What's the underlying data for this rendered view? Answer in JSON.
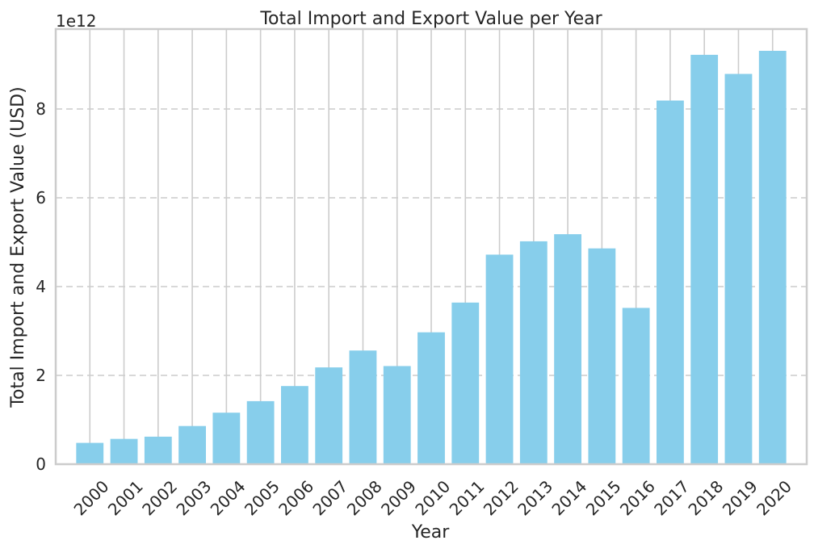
{
  "chart_data": {
    "type": "bar",
    "title": "Total Import and Export Value per Year",
    "xlabel": "Year",
    "ylabel": "Total Import and Export Value (USD)",
    "y_offset_label": "1e12",
    "y_scale": 1000000000000.0,
    "ylim": [
      0,
      9.8
    ],
    "yticks": [
      0,
      2,
      4,
      6,
      8
    ],
    "ytick_labels": [
      "0",
      "2",
      "4",
      "6",
      "8"
    ],
    "categories": [
      "2000",
      "2001",
      "2002",
      "2003",
      "2004",
      "2005",
      "2006",
      "2007",
      "2008",
      "2009",
      "2010",
      "2011",
      "2012",
      "2013",
      "2014",
      "2015",
      "2016",
      "2017",
      "2018",
      "2019",
      "2020"
    ],
    "values": [
      0.48,
      0.57,
      0.62,
      0.86,
      1.16,
      1.42,
      1.76,
      2.18,
      2.56,
      2.21,
      2.97,
      3.64,
      4.72,
      5.02,
      5.18,
      4.86,
      3.52,
      8.19,
      9.22,
      8.79,
      9.31
    ],
    "bar_color": "#87CEEB",
    "grid_color": "#cccccc",
    "axes_edge_color": "#cccccc",
    "grid": "vertical solid at x ticks, horizontal dashed at y ticks"
  }
}
